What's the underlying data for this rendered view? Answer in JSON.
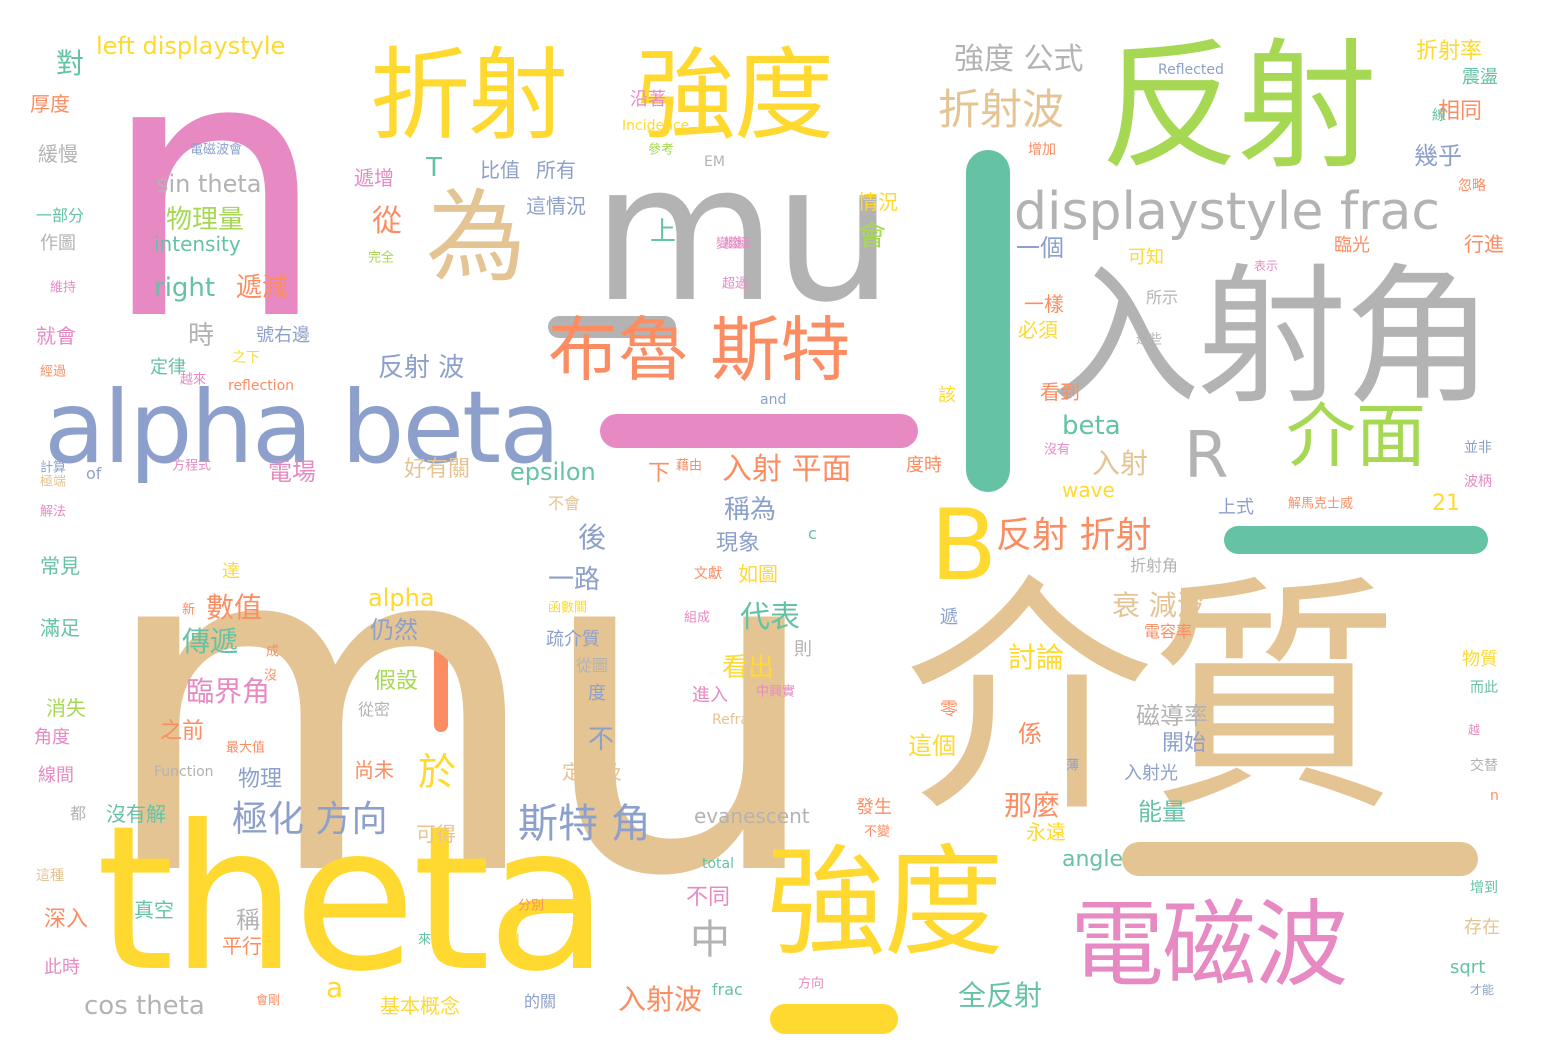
{
  "colors": {
    "tan": "#e5c494",
    "pink": "#e78ac3",
    "yellow": "#ffd92f",
    "green": "#a6d854",
    "gray": "#b3b3b3",
    "blue": "#8da0cb",
    "orange": "#fc8d62",
    "teal": "#66c2a5"
  },
  "words": [
    {
      "text": "n",
      "color": "pink"
    },
    {
      "text": "mu",
      "color": "tan"
    },
    {
      "text": "mu",
      "color": "gray"
    },
    {
      "text": "介質",
      "color": "tan"
    },
    {
      "text": "theta",
      "color": "yellow"
    },
    {
      "text": "反射",
      "color": "green"
    },
    {
      "text": "入射角",
      "color": "gray"
    },
    {
      "text": "強度",
      "color": "yellow"
    },
    {
      "text": "折射",
      "color": "yellow"
    },
    {
      "text": "強度",
      "color": "yellow"
    },
    {
      "text": "電磁波",
      "color": "pink"
    },
    {
      "text": "alpha beta",
      "color": "blue"
    },
    {
      "text": "為",
      "color": "tan"
    },
    {
      "text": "布魯 斯特",
      "color": "orange"
    },
    {
      "text": "B",
      "color": "yellow"
    },
    {
      "text": "displaystyle frac",
      "color": "gray"
    },
    {
      "text": "介面",
      "color": "green"
    },
    {
      "text": "R",
      "color": "gray"
    },
    {
      "text": "折射波",
      "color": "tan"
    },
    {
      "text": "強度 公式",
      "color": "gray"
    },
    {
      "text": "反射 折射",
      "color": "orange"
    },
    {
      "text": "斯特 角",
      "color": "blue"
    },
    {
      "text": "極化 方向",
      "color": "blue"
    },
    {
      "text": "left displaystyle",
      "color": "yellow"
    },
    {
      "text": "入射 平面",
      "color": "orange"
    },
    {
      "text": "電場",
      "color": "pink"
    },
    {
      "text": "epsilon",
      "color": "teal"
    },
    {
      "text": "sin theta",
      "color": "gray"
    },
    {
      "text": "物理量",
      "color": "green"
    },
    {
      "text": "right",
      "color": "teal"
    },
    {
      "text": "遞減",
      "color": "orange"
    },
    {
      "text": "反射 波",
      "color": "blue"
    },
    {
      "text": "衰 減波",
      "color": "tan"
    },
    {
      "text": "磁導率",
      "color": "gray"
    },
    {
      "text": "代表",
      "color": "teal"
    },
    {
      "text": "臨界角",
      "color": "pink"
    },
    {
      "text": "數值",
      "color": "orange"
    },
    {
      "text": "傳遞",
      "color": "teal"
    },
    {
      "text": "全反射",
      "color": "teal"
    },
    {
      "text": "入射波",
      "color": "orange"
    },
    {
      "text": "cos theta",
      "color": "gray"
    },
    {
      "text": "beta",
      "color": "teal"
    },
    {
      "text": "入射",
      "color": "tan"
    },
    {
      "text": "稱為",
      "color": "blue"
    },
    {
      "text": "現象",
      "color": "blue"
    },
    {
      "text": "如圖",
      "color": "yellow"
    },
    {
      "text": "alpha",
      "color": "yellow"
    },
    {
      "text": "仍然",
      "color": "blue"
    },
    {
      "text": "假設",
      "color": "green"
    },
    {
      "text": "看出",
      "color": "yellow"
    },
    {
      "text": "討論",
      "color": "yellow"
    },
    {
      "text": "開始",
      "color": "blue"
    },
    {
      "text": "那麼",
      "color": "orange"
    },
    {
      "text": "這個",
      "color": "yellow"
    },
    {
      "text": "能量",
      "color": "teal"
    },
    {
      "text": "angle",
      "color": "teal"
    },
    {
      "text": "一路",
      "color": "blue"
    },
    {
      "text": "幾乎",
      "color": "blue"
    },
    {
      "text": "相同",
      "color": "orange"
    },
    {
      "text": "折射率",
      "color": "yellow"
    },
    {
      "text": "一個",
      "color": "blue"
    },
    {
      "text": "wave",
      "color": "yellow"
    },
    {
      "text": "evanescent",
      "color": "gray"
    },
    {
      "text": "沒有解",
      "color": "teal"
    },
    {
      "text": "深入",
      "color": "orange"
    },
    {
      "text": "消失",
      "color": "green"
    },
    {
      "text": "角度",
      "color": "pink"
    },
    {
      "text": "滿足",
      "color": "teal"
    },
    {
      "text": "常見",
      "color": "teal"
    },
    {
      "text": "厚度",
      "color": "orange"
    },
    {
      "text": "緩慢",
      "color": "gray"
    },
    {
      "text": "一部分",
      "color": "teal"
    },
    {
      "text": "作圖",
      "color": "gray"
    },
    {
      "text": "就會",
      "color": "pink"
    },
    {
      "text": "線間",
      "color": "pink"
    },
    {
      "text": "此時",
      "color": "pink"
    },
    {
      "text": "基本概念",
      "color": "yellow"
    },
    {
      "text": "真空",
      "color": "teal"
    },
    {
      "text": "平行",
      "color": "orange"
    },
    {
      "text": "可得",
      "color": "tan"
    },
    {
      "text": "物理",
      "color": "blue"
    },
    {
      "text": "之前",
      "color": "orange"
    },
    {
      "text": "尚未",
      "color": "orange"
    },
    {
      "text": "定義及",
      "color": "tan"
    },
    {
      "text": "不同",
      "color": "pink"
    },
    {
      "text": "比值",
      "color": "blue"
    },
    {
      "text": "所有",
      "color": "blue"
    },
    {
      "text": "遞增",
      "color": "pink"
    },
    {
      "text": "這情況",
      "color": "blue"
    },
    {
      "text": "情況",
      "color": "yellow"
    },
    {
      "text": "intensity",
      "color": "teal"
    },
    {
      "text": "時",
      "color": "gray"
    },
    {
      "text": "好有關",
      "color": "tan"
    },
    {
      "text": "下",
      "color": "orange"
    },
    {
      "text": "上",
      "color": "teal"
    },
    {
      "text": "會",
      "color": "green"
    },
    {
      "text": "T",
      "color": "teal"
    },
    {
      "text": "從",
      "color": "orange"
    },
    {
      "text": "對",
      "color": "teal"
    },
    {
      "text": "於",
      "color": "yellow"
    },
    {
      "text": "中",
      "color": "gray"
    },
    {
      "text": "後",
      "color": "blue"
    },
    {
      "text": "不",
      "color": "blue"
    },
    {
      "text": "a",
      "color": "yellow"
    },
    {
      "text": "21",
      "color": "yellow"
    },
    {
      "text": "係",
      "color": "orange"
    },
    {
      "text": "稱",
      "color": "gray"
    },
    {
      "text": "必須",
      "color": "yellow"
    },
    {
      "text": "一樣",
      "color": "orange"
    },
    {
      "text": "看到",
      "color": "orange"
    },
    {
      "text": "可知",
      "color": "yellow"
    },
    {
      "text": "臨光",
      "color": "orange"
    },
    {
      "text": "行進",
      "color": "orange"
    },
    {
      "text": "震盪",
      "color": "teal"
    },
    {
      "text": "物質",
      "color": "yellow"
    },
    {
      "text": "存在",
      "color": "tan"
    },
    {
      "text": "sqrt",
      "color": "teal"
    },
    {
      "text": "增到",
      "color": "teal"
    },
    {
      "text": "永遠",
      "color": "yellow"
    },
    {
      "text": "入射光",
      "color": "blue"
    },
    {
      "text": "折射角",
      "color": "gray"
    },
    {
      "text": "上式",
      "color": "blue"
    },
    {
      "text": "電容率",
      "color": "orange"
    },
    {
      "text": "Reflected",
      "color": "blue"
    },
    {
      "text": "Incidence",
      "color": "yellow"
    },
    {
      "text": "Refracted",
      "color": "tan"
    },
    {
      "text": "Function",
      "color": "gray"
    },
    {
      "text": "reflection",
      "color": "orange"
    },
    {
      "text": "total",
      "color": "teal"
    },
    {
      "text": "frac",
      "color": "teal"
    },
    {
      "text": "of",
      "color": "blue"
    },
    {
      "text": "and",
      "color": "blue"
    },
    {
      "text": "EM",
      "color": "gray"
    },
    {
      "text": "c",
      "color": "teal"
    },
    {
      "text": "n",
      "color": "orange"
    },
    {
      "text": "電磁波會",
      "color": "blue"
    },
    {
      "text": "參考",
      "color": "green"
    },
    {
      "text": "沿著",
      "color": "pink"
    },
    {
      "text": "增加",
      "color": "orange"
    },
    {
      "text": "忽略",
      "color": "orange"
    },
    {
      "text": "表示",
      "color": "pink"
    },
    {
      "text": "所示",
      "color": "gray"
    },
    {
      "text": "這些",
      "color": "gray"
    },
    {
      "text": "藉由",
      "color": "orange"
    },
    {
      "text": "沒有",
      "color": "pink"
    },
    {
      "text": "並非",
      "color": "blue"
    },
    {
      "text": "波柄",
      "color": "pink"
    },
    {
      "text": "解馬克士威",
      "color": "orange"
    },
    {
      "text": "度時",
      "color": "orange"
    },
    {
      "text": "該",
      "color": "yellow"
    },
    {
      "text": "不會",
      "color": "tan"
    },
    {
      "text": "文獻",
      "color": "orange"
    },
    {
      "text": "函數關",
      "color": "yellow"
    },
    {
      "text": "疏介質",
      "color": "blue"
    },
    {
      "text": "從圖",
      "color": "gray"
    },
    {
      "text": "則",
      "color": "gray"
    },
    {
      "text": "組成",
      "color": "pink"
    },
    {
      "text": "進入",
      "color": "pink"
    },
    {
      "text": "中興實",
      "color": "pink"
    },
    {
      "text": "零",
      "color": "orange"
    },
    {
      "text": "遞",
      "color": "blue"
    },
    {
      "text": "度",
      "color": "blue"
    },
    {
      "text": "發生",
      "color": "orange"
    },
    {
      "text": "不變",
      "color": "orange"
    },
    {
      "text": "從密",
      "color": "gray"
    },
    {
      "text": "最大值",
      "color": "orange"
    },
    {
      "text": "方程式",
      "color": "pink"
    },
    {
      "text": "達",
      "color": "yellow"
    },
    {
      "text": "新",
      "color": "orange"
    },
    {
      "text": "成",
      "color": "orange"
    },
    {
      "text": "沒",
      "color": "orange"
    },
    {
      "text": "分別",
      "color": "orange"
    },
    {
      "text": "來",
      "color": "teal"
    },
    {
      "text": "II",
      "color": "yellow"
    },
    {
      "text": "的關",
      "color": "blue"
    },
    {
      "text": "方向",
      "color": "pink"
    },
    {
      "text": "會剛",
      "color": "orange"
    },
    {
      "text": "才能",
      "color": "blue"
    },
    {
      "text": "交替",
      "color": "gray"
    },
    {
      "text": "越",
      "color": "pink"
    },
    {
      "text": "而此",
      "color": "teal"
    },
    {
      "text": "薄",
      "color": "blue"
    },
    {
      "text": "維持",
      "color": "pink"
    },
    {
      "text": "經過",
      "color": "orange"
    },
    {
      "text": "越來",
      "color": "pink"
    },
    {
      "text": "號右邊",
      "color": "blue"
    },
    {
      "text": "之下",
      "color": "yellow"
    },
    {
      "text": "定律",
      "color": "teal"
    },
    {
      "text": "完全",
      "color": "green"
    },
    {
      "text": "繼續",
      "color": "pink"
    },
    {
      "text": "變淺",
      "color": "pink"
    },
    {
      "text": "超過",
      "color": "pink"
    },
    {
      "text": "計算",
      "color": "blue"
    },
    {
      "text": "極端",
      "color": "tan"
    },
    {
      "text": "解法",
      "color": "pink"
    },
    {
      "text": "都",
      "color": "gray"
    },
    {
      "text": "這種",
      "color": "tan"
    },
    {
      "text": "線",
      "color": "teal"
    }
  ]
}
